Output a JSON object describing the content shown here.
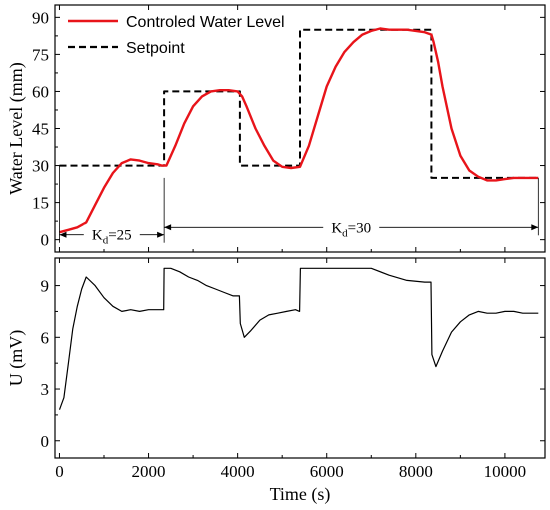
{
  "chart_data": [
    {
      "type": "line",
      "ylabel": "Water Level (mm)",
      "xlim": [
        -100,
        10900
      ],
      "ylim": [
        -5,
        95
      ],
      "yticks": [
        0,
        15,
        30,
        45,
        60,
        75,
        90
      ],
      "legend_position": "top-left",
      "series": [
        {
          "name": "Controled Water Level",
          "color": "#e8141a",
          "style": "solid",
          "x": [
            0,
            200,
            400,
            600,
            800,
            1000,
            1200,
            1400,
            1600,
            1800,
            2000,
            2200,
            2300,
            2400,
            2600,
            2800,
            3000,
            3200,
            3400,
            3600,
            3800,
            4000,
            4100,
            4200,
            4400,
            4600,
            4800,
            5000,
            5200,
            5400,
            5600,
            5800,
            6000,
            6200,
            6400,
            6600,
            6800,
            7000,
            7200,
            7400,
            7600,
            7800,
            8000,
            8200,
            8350,
            8400,
            8500,
            8600,
            8800,
            9000,
            9200,
            9400,
            9600,
            9800,
            10000,
            10200,
            10400,
            10600,
            10750
          ],
          "y": [
            3,
            4,
            5,
            7,
            14,
            21,
            27,
            31,
            32.5,
            32,
            31,
            30.5,
            30,
            30,
            38,
            47,
            54,
            58,
            60,
            60.5,
            60.5,
            60,
            58,
            54,
            45,
            38,
            32,
            29.5,
            29,
            29.5,
            38,
            50,
            62,
            70,
            76,
            80,
            83,
            84.5,
            85.5,
            85,
            85,
            85,
            84.5,
            84,
            83,
            80,
            72,
            62,
            45,
            34,
            28,
            25.5,
            24,
            24,
            24.5,
            25,
            25,
            25,
            25
          ]
        },
        {
          "name": "Setpoint",
          "color": "#000000",
          "style": "dashed",
          "x": [
            0,
            2350,
            2350,
            4050,
            4050,
            5400,
            5400,
            8350,
            8350,
            10750
          ],
          "y": [
            30,
            30,
            60,
            60,
            30,
            30,
            85,
            85,
            25,
            25
          ]
        }
      ],
      "annotations": [
        {
          "kind": "arrow-span",
          "x": [
            0,
            2350
          ],
          "y": 2,
          "label": "K",
          "sub": "d",
          "suffix": "=25"
        },
        {
          "kind": "arrow-span",
          "x": [
            2350,
            10750
          ],
          "y": 5,
          "label": "K",
          "sub": "d",
          "suffix": "=30"
        }
      ]
    },
    {
      "type": "line",
      "xlabel": "Time (s)",
      "ylabel": "U (mV)",
      "xlim": [
        -100,
        10900
      ],
      "ylim": [
        -1,
        10.6
      ],
      "xticks": [
        0,
        2000,
        4000,
        6000,
        8000,
        10000
      ],
      "yticks": [
        0,
        3,
        6,
        9
      ],
      "series": [
        {
          "name": "",
          "color": "#000000",
          "style": "solid",
          "x": [
            0,
            100,
            200,
            300,
            400,
            500,
            600,
            800,
            1000,
            1200,
            1400,
            1600,
            1800,
            2000,
            2200,
            2340,
            2350,
            2500,
            2700,
            2900,
            3100,
            3300,
            3500,
            3700,
            3900,
            4040,
            4060,
            4150,
            4300,
            4500,
            4700,
            4900,
            5100,
            5300,
            5390,
            5410,
            5800,
            6200,
            6600,
            7000,
            7400,
            7800,
            8200,
            8340,
            8360,
            8450,
            8600,
            8800,
            9000,
            9200,
            9400,
            9600,
            9800,
            10000,
            10200,
            10400,
            10600,
            10750
          ],
          "y": [
            1.8,
            2.5,
            4.5,
            6.5,
            7.8,
            8.8,
            9.5,
            9.0,
            8.3,
            7.8,
            7.5,
            7.6,
            7.5,
            7.6,
            7.6,
            7.6,
            10.0,
            10.0,
            9.8,
            9.5,
            9.3,
            9.0,
            8.8,
            8.6,
            8.4,
            8.4,
            6.8,
            6.0,
            6.4,
            7.0,
            7.3,
            7.4,
            7.5,
            7.6,
            7.5,
            10.0,
            10.0,
            10.0,
            10.0,
            10.0,
            9.6,
            9.3,
            9.2,
            9.2,
            5.0,
            4.3,
            5.2,
            6.3,
            6.9,
            7.3,
            7.5,
            7.4,
            7.4,
            7.5,
            7.5,
            7.4,
            7.4,
            7.4
          ]
        }
      ]
    }
  ]
}
